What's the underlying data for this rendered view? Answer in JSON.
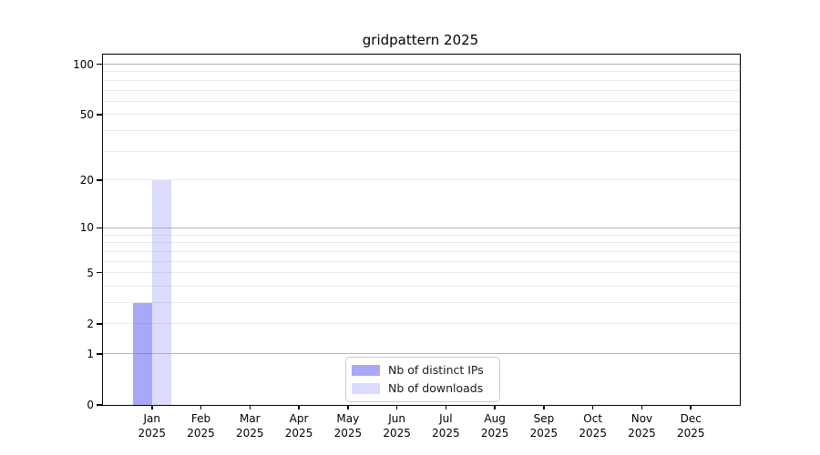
{
  "chart_data": {
    "type": "bar",
    "title": "gridpattern 2025",
    "categories": [
      "Jan",
      "Feb",
      "Mar",
      "Apr",
      "May",
      "Jun",
      "Jul",
      "Aug",
      "Sep",
      "Oct",
      "Nov",
      "Dec"
    ],
    "category_year": "2025",
    "series": [
      {
        "name": "Nb of distinct IPs",
        "color": "rgba(100,100,242,0.56)",
        "values": [
          3,
          0,
          0,
          0,
          0,
          0,
          0,
          0,
          0,
          0,
          0,
          0
        ]
      },
      {
        "name": "Nb of downloads",
        "color": "rgba(160,160,245,0.38)",
        "values": [
          20,
          0,
          0,
          0,
          0,
          0,
          0,
          0,
          0,
          0,
          0,
          0
        ]
      }
    ],
    "xlabel": "",
    "ylabel": "",
    "yscale": "log1p",
    "ylim": [
      0,
      114
    ],
    "yticks": [
      0,
      1,
      2,
      5,
      10,
      20,
      50,
      100
    ],
    "major_gridlines": [
      1,
      10,
      100
    ],
    "minor_gridlines": [
      2,
      3,
      4,
      5,
      6,
      7,
      8,
      9,
      20,
      30,
      40,
      50,
      60,
      70,
      80,
      90
    ],
    "grid": true,
    "legend_position": "lower center",
    "colors": {
      "major_grid": "#b3b3b3",
      "minor_grid": "#e9e9e9",
      "spine": "#000000",
      "legend_border": "#cccccc"
    }
  }
}
